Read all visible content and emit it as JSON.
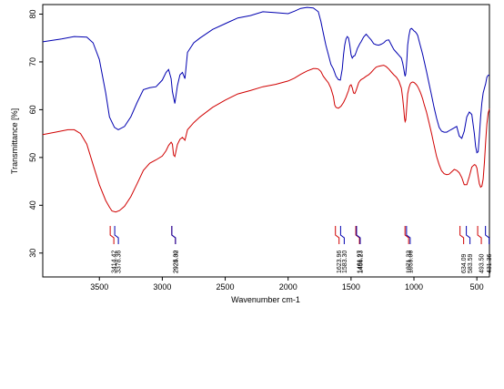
{
  "chart_data": {
    "type": "line",
    "xlabel": "Wavenumber cm-1",
    "ylabel": "Transmittance [%]",
    "xlim": [
      3950,
      400
    ],
    "ylim": [
      25,
      82
    ],
    "x_reversed": true,
    "grid": false,
    "x_ticks": [
      3500,
      3000,
      2500,
      2000,
      1500,
      1000,
      500
    ],
    "y_ticks": [
      30,
      40,
      50,
      60,
      70,
      80
    ],
    "series": [
      {
        "color": "#0000b0",
        "x": [
          3950,
          3800,
          3700,
          3600,
          3550,
          3500,
          3450,
          3420,
          3380,
          3350,
          3300,
          3250,
          3200,
          3150,
          3100,
          3050,
          3000,
          2970,
          2950,
          2930,
          2920,
          2900,
          2880,
          2860,
          2840,
          2820,
          2800,
          2750,
          2700,
          2600,
          2500,
          2400,
          2300,
          2200,
          2100,
          2000,
          1950,
          1900,
          1850,
          1800,
          1760,
          1740,
          1720,
          1700,
          1680,
          1660,
          1640,
          1620,
          1600,
          1585,
          1570,
          1560,
          1550,
          1540,
          1530,
          1520,
          1510,
          1500,
          1490,
          1480,
          1470,
          1460,
          1450,
          1440,
          1430,
          1420,
          1400,
          1380,
          1360,
          1340,
          1320,
          1300,
          1280,
          1260,
          1240,
          1220,
          1200,
          1180,
          1160,
          1140,
          1120,
          1100,
          1090,
          1080,
          1075,
          1070,
          1065,
          1060,
          1055,
          1050,
          1040,
          1030,
          1020,
          1010,
          1000,
          990,
          980,
          970,
          960,
          950,
          940,
          930,
          920,
          900,
          880,
          860,
          840,
          820,
          800,
          780,
          760,
          740,
          720,
          700,
          680,
          660,
          640,
          620,
          600,
          580,
          560,
          540,
          520,
          510,
          500,
          490,
          480,
          470,
          460,
          450,
          440,
          430,
          420,
          410,
          400
        ],
        "y": [
          74.2,
          74.8,
          75.3,
          75.2,
          74.0,
          70.5,
          63.5,
          58.5,
          56.3,
          55.8,
          56.5,
          58.5,
          61.5,
          64.2,
          64.6,
          64.8,
          66.2,
          67.8,
          68.4,
          66.5,
          63.8,
          61.3,
          65.0,
          67.3,
          67.8,
          66.5,
          72.0,
          74.0,
          75.0,
          76.8,
          78.0,
          79.2,
          79.7,
          80.5,
          80.3,
          80.1,
          80.6,
          81.2,
          81.4,
          81.3,
          80.5,
          78.5,
          76.0,
          73.5,
          71.5,
          69.5,
          68.5,
          67.0,
          66.3,
          66.2,
          68.5,
          71.5,
          73.5,
          74.8,
          75.3,
          75.0,
          73.5,
          71.5,
          70.8,
          71.2,
          71.3,
          72.0,
          72.8,
          73.3,
          73.8,
          74.2,
          75.2,
          75.8,
          75.2,
          74.6,
          73.8,
          73.6,
          73.5,
          73.7,
          74.0,
          74.5,
          74.6,
          73.6,
          72.6,
          72.0,
          71.4,
          70.8,
          69.8,
          68.5,
          67.6,
          67.0,
          67.5,
          69.0,
          71.0,
          73.5,
          75.5,
          76.8,
          77.0,
          76.8,
          76.5,
          76.3,
          76.0,
          75.5,
          74.5,
          73.5,
          72.5,
          71.5,
          70.3,
          68.0,
          65.5,
          63.0,
          60.5,
          58.2,
          56.3,
          55.5,
          55.3,
          55.3,
          55.6,
          55.9,
          56.2,
          56.5,
          54.5,
          54.0,
          55.5,
          58.5,
          59.5,
          59.0,
          55.0,
          52.3,
          51.0,
          51.2,
          54.5,
          58.5,
          61.5,
          63.5,
          64.5,
          65.5,
          66.8,
          67.2,
          67.2
        ],
        "peak_labels": [
          "3378.36",
          "2924.30",
          "1583.30",
          "1456.23",
          "1059.06",
          "583.59",
          "431.36"
        ]
      },
      {
        "color": "#d00000",
        "x": [
          3950,
          3850,
          3750,
          3700,
          3650,
          3600,
          3550,
          3500,
          3450,
          3420,
          3400,
          3370,
          3340,
          3300,
          3250,
          3200,
          3150,
          3100,
          3050,
          3000,
          2970,
          2950,
          2930,
          2920,
          2910,
          2900,
          2880,
          2860,
          2840,
          2820,
          2800,
          2750,
          2700,
          2600,
          2500,
          2400,
          2300,
          2200,
          2100,
          2000,
          1950,
          1900,
          1850,
          1800,
          1780,
          1760,
          1740,
          1720,
          1700,
          1680,
          1660,
          1640,
          1630,
          1620,
          1600,
          1580,
          1560,
          1540,
          1520,
          1510,
          1500,
          1490,
          1480,
          1470,
          1460,
          1450,
          1440,
          1430,
          1420,
          1400,
          1380,
          1360,
          1340,
          1320,
          1300,
          1280,
          1260,
          1240,
          1220,
          1200,
          1180,
          1160,
          1140,
          1120,
          1100,
          1090,
          1080,
          1075,
          1070,
          1065,
          1060,
          1055,
          1050,
          1040,
          1030,
          1020,
          1010,
          1000,
          990,
          980,
          970,
          960,
          950,
          940,
          930,
          920,
          900,
          880,
          860,
          840,
          820,
          800,
          780,
          760,
          740,
          720,
          700,
          680,
          660,
          640,
          620,
          600,
          580,
          560,
          540,
          520,
          510,
          500,
          490,
          480,
          470,
          460,
          450,
          440,
          430,
          420,
          410,
          400
        ],
        "y": [
          54.8,
          55.3,
          55.8,
          55.8,
          55.0,
          52.8,
          48.5,
          44.3,
          41.0,
          39.6,
          38.8,
          38.6,
          38.9,
          39.8,
          41.8,
          44.5,
          47.3,
          48.8,
          49.5,
          50.3,
          51.4,
          52.5,
          53.2,
          52.8,
          50.5,
          50.2,
          52.7,
          53.8,
          54.2,
          53.6,
          55.8,
          57.3,
          58.5,
          60.5,
          62.0,
          63.3,
          64.0,
          64.8,
          65.3,
          66.0,
          66.6,
          67.4,
          68.1,
          68.6,
          68.6,
          68.5,
          68.0,
          67.0,
          66.3,
          65.6,
          64.5,
          62.7,
          61.0,
          60.5,
          60.3,
          60.7,
          61.5,
          62.6,
          64.0,
          65.0,
          65.2,
          64.6,
          63.5,
          63.4,
          64.0,
          64.8,
          65.6,
          66.0,
          66.3,
          66.6,
          67.0,
          67.3,
          67.8,
          68.4,
          68.9,
          69.1,
          69.2,
          69.3,
          69.0,
          68.5,
          67.9,
          67.3,
          66.8,
          66.0,
          64.5,
          62.5,
          60.0,
          58.3,
          57.5,
          57.8,
          59.5,
          61.5,
          63.3,
          64.6,
          65.4,
          65.7,
          65.8,
          65.7,
          65.5,
          65.2,
          64.8,
          64.3,
          63.7,
          63.0,
          62.2,
          61.2,
          59.5,
          57.3,
          55.0,
          52.6,
          50.2,
          48.5,
          47.2,
          46.6,
          46.4,
          46.5,
          47.0,
          47.5,
          47.3,
          46.8,
          45.8,
          44.3,
          44.3,
          46.0,
          48.0,
          48.5,
          48.4,
          47.8,
          46.0,
          44.5,
          43.8,
          44.0,
          45.5,
          49.0,
          53.5,
          57.0,
          59.3,
          60.2
        ],
        "peak_labels": [
          "3414.42",
          "2925.02",
          "1623.96",
          "1461.97",
          "1071.33",
          "634.09",
          "493.50"
        ]
      }
    ],
    "peak_markers": [
      {
        "x": 3414,
        "color": "#d00000",
        "label": "3414.42"
      },
      {
        "x": 3378,
        "color": "#0000b0",
        "label": "3378.36"
      },
      {
        "x": 2925,
        "color": "#d00000",
        "label": "2925.02"
      },
      {
        "x": 2924,
        "color": "#0000b0",
        "label": "2924.30"
      },
      {
        "x": 1624,
        "color": "#d00000",
        "label": "1623.96"
      },
      {
        "x": 1583,
        "color": "#0000b0",
        "label": "1583.30"
      },
      {
        "x": 1462,
        "color": "#d00000",
        "label": "1461.97"
      },
      {
        "x": 1456,
        "color": "#0000b0",
        "label": "1456.23"
      },
      {
        "x": 1071,
        "color": "#d00000",
        "label": "1071.33"
      },
      {
        "x": 1059,
        "color": "#0000b0",
        "label": "1059.06"
      },
      {
        "x": 634,
        "color": "#d00000",
        "label": "634.09"
      },
      {
        "x": 583.6,
        "color": "#0000b0",
        "label": "583.59"
      },
      {
        "x": 493.5,
        "color": "#d00000",
        "label": "493.50"
      },
      {
        "x": 431.4,
        "color": "#0000b0",
        "label": "431.36"
      }
    ]
  }
}
